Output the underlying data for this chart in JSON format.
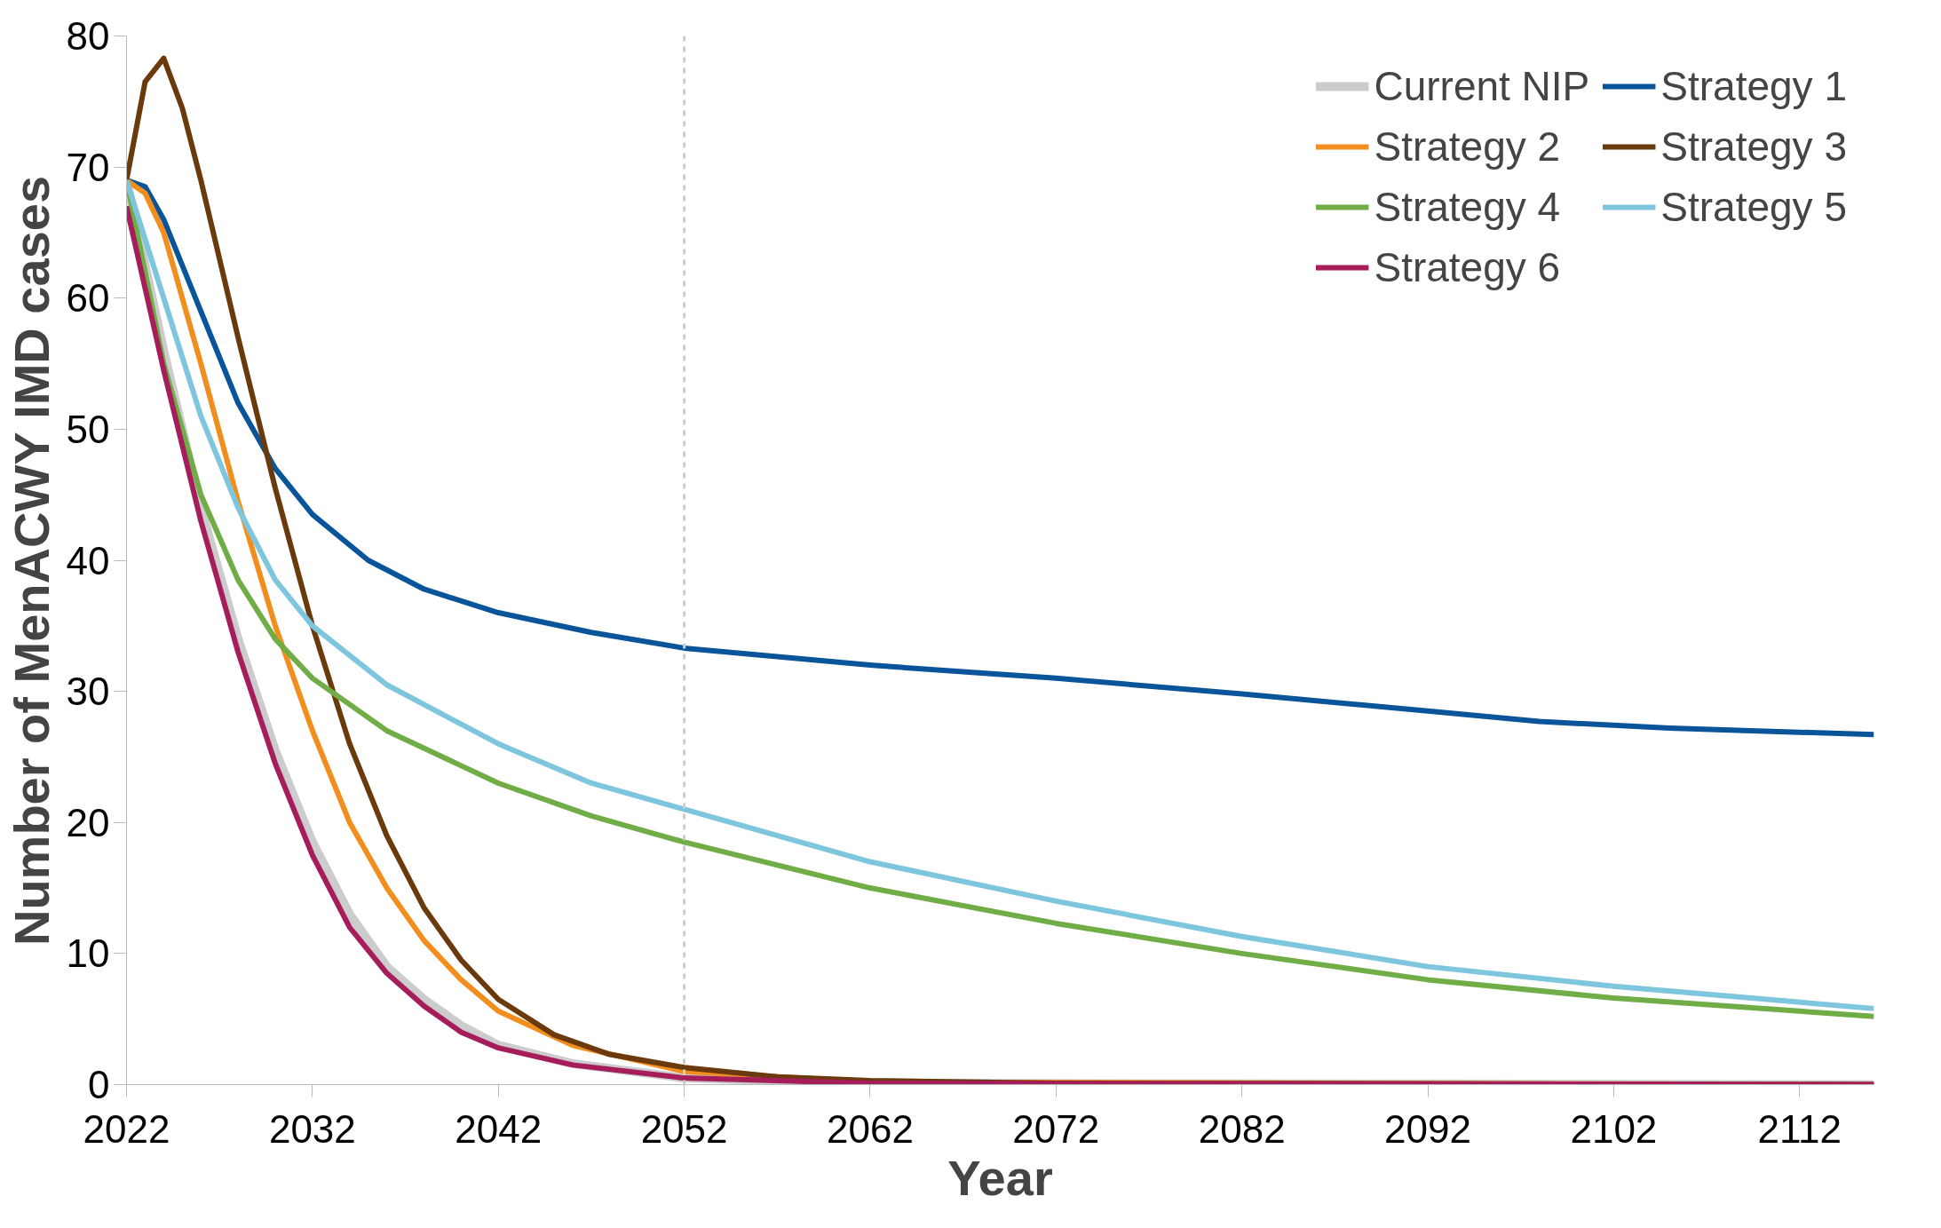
{
  "chart_data": {
    "type": "line",
    "xlabel": "Year",
    "ylabel": "Number of MenACWY IMD cases",
    "xlim": [
      2022,
      2116
    ],
    "ylim": [
      0,
      80
    ],
    "xticks": [
      2022,
      2032,
      2042,
      2052,
      2062,
      2072,
      2082,
      2092,
      2102,
      2112
    ],
    "yticks": [
      0,
      10,
      20,
      30,
      40,
      50,
      60,
      70,
      80
    ],
    "grid": false,
    "legend": "top right",
    "marker": "none",
    "line_style": "solid",
    "ref_lines": [
      {
        "axis": "x",
        "value": 2052,
        "color": "#cccccc",
        "line_style": "dashed"
      }
    ],
    "series": [
      {
        "name": "Current NIP",
        "color": "#cccccc",
        "x": [
          2022,
          2024,
          2026,
          2028,
          2030,
          2032,
          2034,
          2036,
          2038,
          2040,
          2042,
          2046,
          2052,
          2062,
          2116
        ],
        "values": [
          69,
          56,
          44,
          34,
          25.5,
          18.5,
          13,
          9,
          6.5,
          4.5,
          3,
          1.6,
          0.5,
          0.1,
          0
        ]
      },
      {
        "name": "Strategy 1",
        "color": "#0a559a",
        "x": [
          2022,
          2023,
          2024,
          2026,
          2028,
          2030,
          2032,
          2035,
          2038,
          2042,
          2047,
          2052,
          2062,
          2072,
          2082,
          2092,
          2098,
          2105,
          2116
        ],
        "values": [
          69,
          68.5,
          66,
          59,
          52,
          47,
          43.5,
          40,
          37.8,
          36,
          34.5,
          33.3,
          32,
          31,
          29.8,
          28.5,
          27.7,
          27.2,
          26.7
        ]
      },
      {
        "name": "Strategy 2",
        "color": "#f28e1e",
        "x": [
          2022,
          2023,
          2024,
          2026,
          2028,
          2030,
          2032,
          2034,
          2036,
          2038,
          2040,
          2042,
          2046,
          2052,
          2062,
          2116
        ],
        "values": [
          69,
          68,
          65,
          55,
          44.5,
          35,
          27,
          20,
          15,
          11,
          8,
          5.6,
          3,
          1,
          0.2,
          0
        ]
      },
      {
        "name": "Strategy 3",
        "color": "#6b3a0c",
        "x": [
          2022,
          2023,
          2024,
          2025,
          2026,
          2028,
          2030,
          2032,
          2034,
          2036,
          2038,
          2040,
          2042,
          2045,
          2048,
          2052,
          2057,
          2062,
          2072,
          2116
        ],
        "values": [
          69,
          76.5,
          78.3,
          74.5,
          69,
          57,
          45.5,
          35,
          26,
          19,
          13.5,
          9.5,
          6.5,
          3.8,
          2.3,
          1.3,
          0.6,
          0.3,
          0.1,
          0
        ]
      },
      {
        "name": "Strategy 4",
        "color": "#70ad47",
        "x": [
          2022,
          2024,
          2026,
          2028,
          2030,
          2032,
          2036,
          2042,
          2047,
          2052,
          2062,
          2072,
          2082,
          2092,
          2102,
          2116
        ],
        "values": [
          69,
          55,
          45,
          38.5,
          34,
          31,
          27,
          23,
          20.5,
          18.5,
          15,
          12.3,
          10,
          8,
          6.6,
          5.2
        ]
      },
      {
        "name": "Strategy 5",
        "color": "#7ec5de",
        "x": [
          2022,
          2024,
          2026,
          2028,
          2030,
          2032,
          2036,
          2042,
          2047,
          2052,
          2062,
          2072,
          2082,
          2092,
          2102,
          2116
        ],
        "values": [
          69,
          60,
          51,
          44,
          38.5,
          35,
          30.5,
          26,
          23,
          21,
          17,
          14,
          11.3,
          9,
          7.5,
          5.8
        ]
      },
      {
        "name": "Strategy 6",
        "color": "#a51d5a",
        "x": [
          2022,
          2024,
          2026,
          2028,
          2030,
          2032,
          2034,
          2036,
          2038,
          2040,
          2042,
          2046,
          2052,
          2062,
          2116
        ],
        "values": [
          67,
          54.5,
          43,
          33,
          24.5,
          17.5,
          12,
          8.5,
          6,
          4,
          2.8,
          1.5,
          0.5,
          0.1,
          0
        ]
      }
    ]
  }
}
